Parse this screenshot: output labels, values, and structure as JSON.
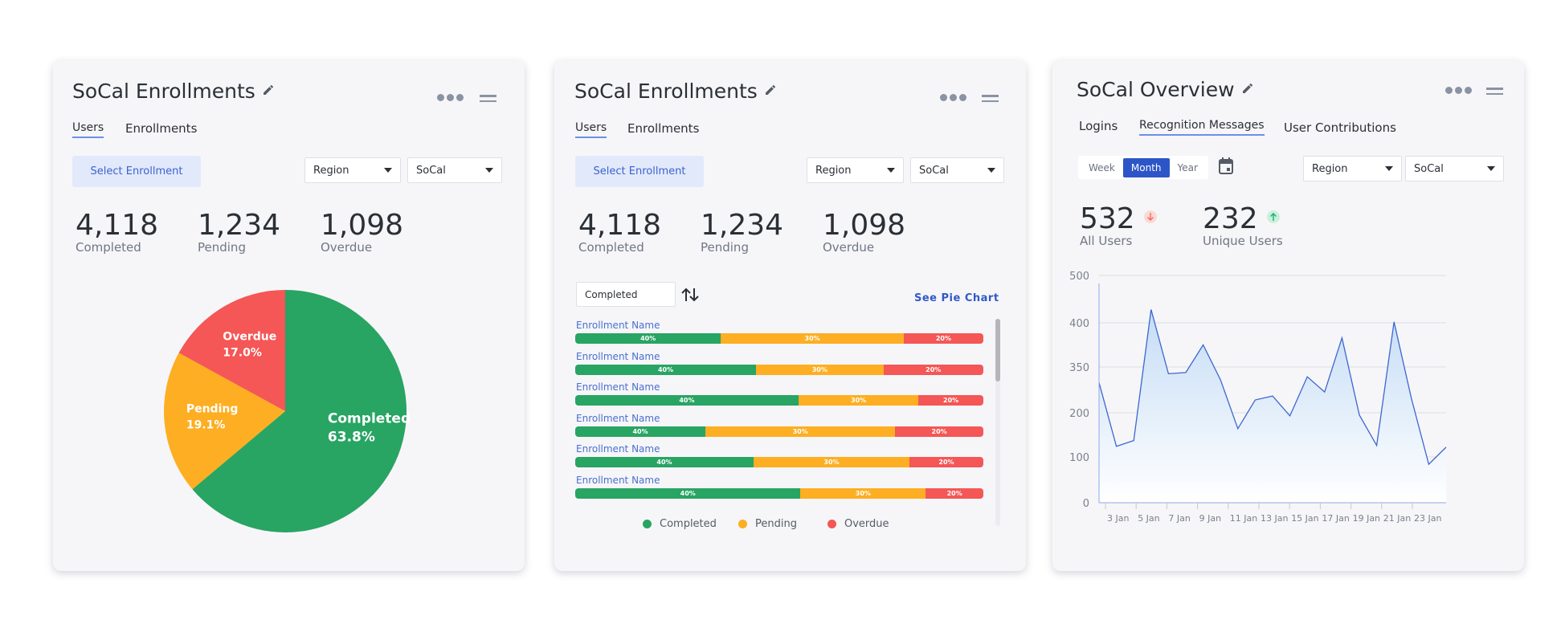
{
  "colors": {
    "completed": "#28a463",
    "pending": "#fdae22",
    "overdue": "#f55656",
    "accent": "#2c55c7",
    "line": "#3d66d1"
  },
  "card1": {
    "title": "SoCal Enrollments",
    "tabs": [
      {
        "label": "Users",
        "active": true
      },
      {
        "label": "Enrollments",
        "active": false
      }
    ],
    "select_button": "Select Enrollment",
    "dropdowns": [
      "Region",
      "SoCal"
    ],
    "stats": [
      {
        "value": "4,118",
        "label": "Completed"
      },
      {
        "value": "1,234",
        "label": "Pending"
      },
      {
        "value": "1,098",
        "label": "Overdue"
      }
    ],
    "pie": [
      {
        "label": "Completed",
        "pct": "63.8%",
        "value": 63.8
      },
      {
        "label": "Pending",
        "pct": "19.1%",
        "value": 19.1
      },
      {
        "label": "Overdue",
        "pct": "17.0%",
        "value": 17.0
      }
    ]
  },
  "card2": {
    "title": "SoCal Enrollments",
    "tabs": [
      {
        "label": "Users",
        "active": true
      },
      {
        "label": "Enrollments",
        "active": false
      }
    ],
    "select_button": "Select Enrollment",
    "dropdowns": [
      "Region",
      "SoCal"
    ],
    "stats": [
      {
        "value": "4,118",
        "label": "Completed"
      },
      {
        "value": "1,234",
        "label": "Pending"
      },
      {
        "value": "1,098",
        "label": "Overdue"
      }
    ],
    "sort_select": "Completed",
    "see_pie_chart": "See Pie Chart",
    "rows": [
      {
        "name": "Enrollment Name",
        "labels": [
          "40%",
          "30%",
          "20%"
        ],
        "shares": [
          35.7,
          44.8,
          19.5
        ]
      },
      {
        "name": "Enrollment Name",
        "labels": [
          "40%",
          "30%",
          "20%"
        ],
        "shares": [
          44.3,
          31.2,
          24.5
        ]
      },
      {
        "name": "Enrollment Name",
        "labels": [
          "40%",
          "30%",
          "20%"
        ],
        "shares": [
          54.7,
          29.4,
          15.9
        ]
      },
      {
        "name": "Enrollment Name",
        "labels": [
          "40%",
          "30%",
          "20%"
        ],
        "shares": [
          31.9,
          46.5,
          21.6
        ]
      },
      {
        "name": "Enrollment Name",
        "labels": [
          "40%",
          "30%",
          "20%"
        ],
        "shares": [
          43.7,
          38.2,
          18.1
        ]
      },
      {
        "name": "Enrollment Name",
        "labels": [
          "40%",
          "30%",
          "20%"
        ],
        "shares": [
          55.2,
          30.7,
          14.1
        ]
      }
    ],
    "legend": [
      "Completed",
      "Pending",
      "Overdue"
    ]
  },
  "card3": {
    "title": "SoCal Overview",
    "tabs": [
      {
        "label": "Logins",
        "active": false
      },
      {
        "label": "Recognition Messages",
        "active": true
      },
      {
        "label": "User Contributions",
        "active": false
      }
    ],
    "periods": [
      {
        "label": "Week",
        "active": false
      },
      {
        "label": "Month",
        "active": true
      },
      {
        "label": "Year",
        "active": false
      }
    ],
    "dropdowns": [
      "Region",
      "SoCal"
    ],
    "stats": [
      {
        "value": "532",
        "label": "All Users",
        "trend": "down"
      },
      {
        "value": "232",
        "label": "Unique Users",
        "trend": "up"
      }
    ]
  },
  "chart_data": {
    "type": "area",
    "y_tick_labels": [
      "500",
      "400",
      "350",
      "200",
      "100",
      "0"
    ],
    "x_tick_labels": [
      "3 Jan",
      "5 Jan",
      "7 Jan",
      "9 Jan",
      "11 Jan",
      "13 Jan",
      "15 Jan",
      "17 Jan",
      "19 Jan",
      "21 Jan",
      "23 Jan"
    ],
    "values": [
      299,
      124,
      137,
      428,
      328,
      332,
      375,
      308,
      164,
      242,
      255,
      193,
      318,
      268,
      383,
      195,
      126,
      402,
      247,
      84,
      122
    ],
    "grid": true
  }
}
